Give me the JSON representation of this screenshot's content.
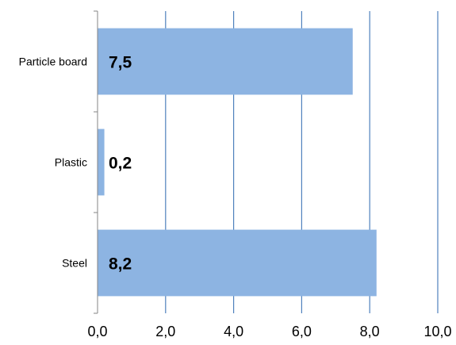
{
  "chart_data": {
    "type": "bar",
    "orientation": "horizontal",
    "categories": [
      "Particle board",
      "Plastic",
      "Steel"
    ],
    "values": [
      7.5,
      0.2,
      8.2
    ],
    "data_labels": [
      "7,5",
      "0,2",
      "8,2"
    ],
    "xlim": [
      0,
      10
    ],
    "x_ticks": [
      0,
      2,
      4,
      6,
      8,
      10
    ],
    "x_tick_labels": [
      "0,0",
      "2,0",
      "4,0",
      "6,0",
      "8,0",
      "10,0"
    ],
    "title": "",
    "xlabel": "",
    "ylabel": "",
    "grid": "vertical major gridlines",
    "legend": "none",
    "colors": {
      "bar": "#8DB4E2",
      "grid": "#4F81BD",
      "axis": "#868686",
      "text": "#000000"
    }
  }
}
